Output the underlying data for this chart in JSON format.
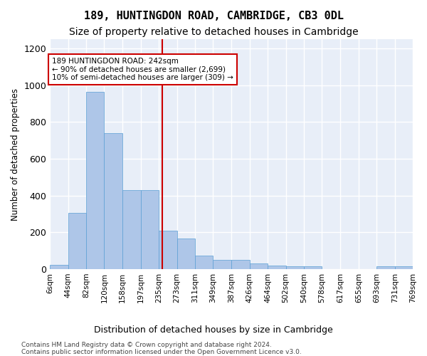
{
  "title": "189, HUNTINGDON ROAD, CAMBRIDGE, CB3 0DL",
  "subtitle": "Size of property relative to detached houses in Cambridge",
  "xlabel": "Distribution of detached houses by size in Cambridge",
  "ylabel": "Number of detached properties",
  "bar_color": "#aec6e8",
  "bar_edge_color": "#5a9fd4",
  "vline_x": 242,
  "vline_color": "#cc0000",
  "annotation_text": "189 HUNTINGDON ROAD: 242sqm\n← 90% of detached houses are smaller (2,699)\n10% of semi-detached houses are larger (309) →",
  "annotation_box_color": "#cc0000",
  "bin_edges": [
    6,
    44,
    82,
    120,
    158,
    197,
    235,
    273,
    311,
    349,
    387,
    426,
    464,
    502,
    540,
    578,
    617,
    655,
    693,
    731,
    769
  ],
  "bar_heights": [
    25,
    305,
    965,
    740,
    430,
    430,
    210,
    165,
    75,
    50,
    50,
    30,
    20,
    15,
    15,
    0,
    0,
    0,
    15,
    15
  ],
  "ylim": [
    0,
    1250
  ],
  "yticks": [
    0,
    200,
    400,
    600,
    800,
    1000,
    1200
  ],
  "bg_color": "#e8eef8",
  "grid_color": "#ffffff",
  "footer_text": "Contains HM Land Registry data © Crown copyright and database right 2024.\nContains public sector information licensed under the Open Government Licence v3.0.",
  "tick_label_fontsize": 7.5,
  "title_fontsize": 11,
  "subtitle_fontsize": 10
}
